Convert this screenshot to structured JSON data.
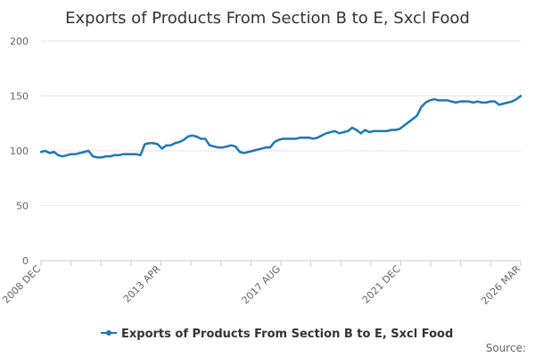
{
  "chart_data": {
    "type": "line",
    "title": "Exports of Products From Section B to E, Sxcl Food",
    "xlabel": "",
    "ylabel": "",
    "ylim": [
      0,
      200
    ],
    "yticks": [
      0,
      50,
      100,
      150,
      200
    ],
    "x_range": [
      "2008 DEC",
      "2026 MAR"
    ],
    "x_tick_labels": [
      "2008 DEC",
      "2013 APR",
      "2017 AUG",
      "2021 DEC",
      "2026 MAR"
    ],
    "x_minor_ticks": 16,
    "grid": true,
    "legend_position": "bottom-center",
    "series": [
      {
        "name": "Exports of Products From Section B to E, Sxcl Food",
        "color": "#1f77b4",
        "values": [
          99,
          100,
          98,
          99,
          96,
          95,
          96,
          97,
          97,
          98,
          99,
          100,
          95,
          94,
          94,
          95,
          95,
          96,
          96,
          97,
          97,
          97,
          97,
          96,
          106,
          107,
          107,
          106,
          102,
          105,
          105,
          107,
          108,
          110,
          113,
          114,
          113,
          111,
          111,
          105,
          104,
          103,
          103,
          104,
          105,
          104,
          99,
          98,
          99,
          100,
          101,
          102,
          103,
          103,
          108,
          110,
          111,
          111,
          111,
          111,
          112,
          112,
          112,
          111,
          112,
          114,
          116,
          117,
          118,
          116,
          117,
          118,
          121,
          119,
          116,
          119,
          117,
          118,
          118,
          118,
          118,
          119,
          119,
          120,
          123,
          126,
          129,
          132,
          140,
          144,
          146,
          147,
          146,
          146,
          146,
          145,
          144,
          145,
          145,
          145,
          144,
          145,
          144,
          144,
          145,
          145,
          142,
          143,
          144,
          145,
          147,
          150
        ]
      }
    ]
  },
  "source": "Source:"
}
